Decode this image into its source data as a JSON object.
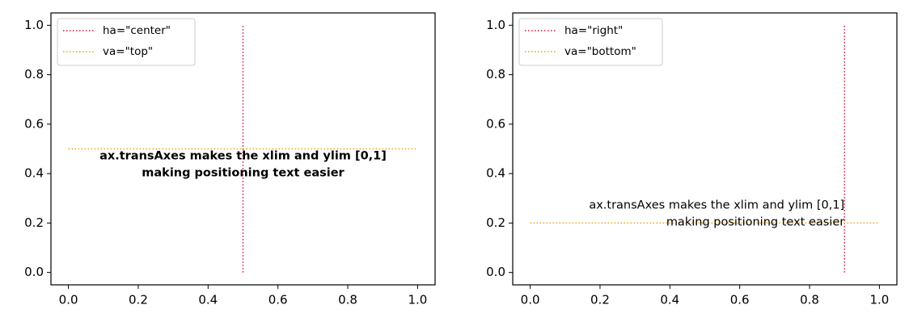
{
  "chart_data": [
    {
      "type": "line",
      "series": [
        {
          "name": "ha=\"center\"",
          "color": "#dc143c",
          "x": [
            0.5,
            0.5
          ],
          "values": [
            0,
            1
          ]
        },
        {
          "name": "va=\"top\"",
          "color": "#f0a30a",
          "x": [
            0,
            1
          ],
          "values": [
            0.5,
            0.5
          ]
        }
      ],
      "annotation": [
        "ax.transAxes makes the xlim and ylim [0,1]",
        "making positioning text easier"
      ],
      "xlim": [
        -0.05,
        1.05
      ],
      "ylim": [
        -0.05,
        1.05
      ],
      "xticks": [
        {
          "value": 0,
          "label": "0.0"
        },
        0.2,
        0.4,
        0.6,
        0.8,
        {
          "value": 1,
          "label": "1.0"
        }
      ],
      "yticks": [
        {
          "value": 0,
          "label": "0.0"
        },
        0.2,
        0.4,
        0.6,
        0.8,
        {
          "value": 1,
          "label": "1.0"
        }
      ],
      "legend": "upper left",
      "grid": false
    },
    {
      "type": "line",
      "series": [
        {
          "name": "ha=\"right\"",
          "color": "#dc143c",
          "x": [
            0.9,
            0.9
          ],
          "values": [
            0,
            1
          ]
        },
        {
          "name": "va=\"bottom\"",
          "color": "#f0a30a",
          "x": [
            0,
            1
          ],
          "values": [
            0.2,
            0.2
          ]
        }
      ],
      "annotation": [
        "ax.transAxes makes the xlim and ylim [0,1]",
        "making positioning text easier"
      ],
      "xlim": [
        -0.05,
        1.05
      ],
      "ylim": [
        -0.05,
        1.05
      ],
      "xticks": [
        {
          "value": 0,
          "label": "0.0"
        },
        0.2,
        0.4,
        0.6,
        0.8,
        {
          "value": 1,
          "label": "1.0"
        }
      ],
      "yticks": [
        {
          "value": 0,
          "label": "0.0"
        },
        0.2,
        0.4,
        0.6,
        0.8,
        {
          "value": 1,
          "label": "1.0"
        }
      ],
      "legend": "upper left",
      "grid": false
    }
  ]
}
